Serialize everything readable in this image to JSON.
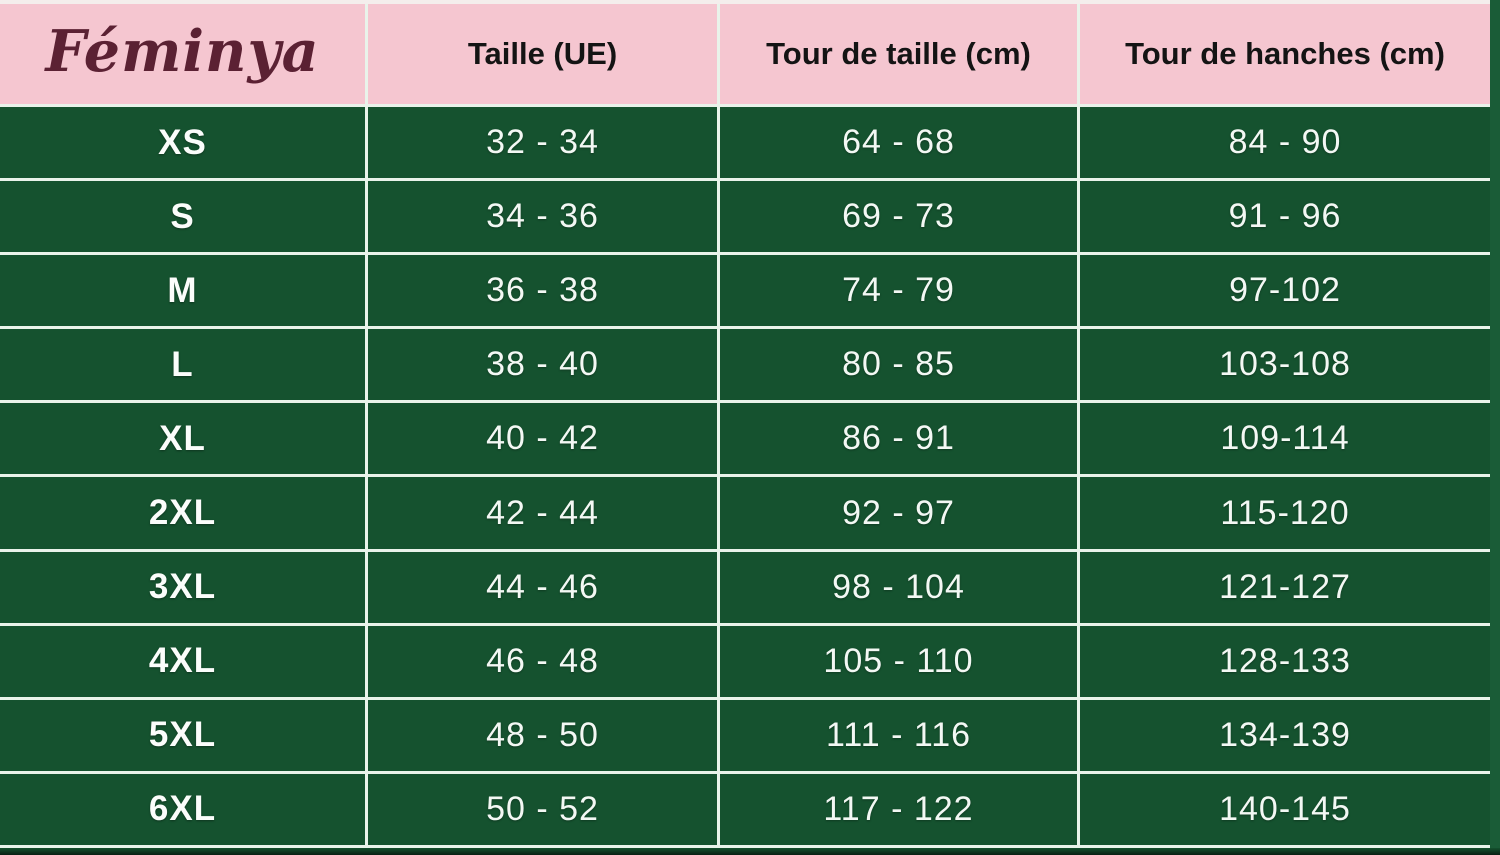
{
  "brand": {
    "name": "Féminya"
  },
  "chart_data": {
    "type": "table",
    "title": "Féminya size chart",
    "columns": [
      "Féminya",
      "Taille (UE)",
      "Tour de taille (cm)",
      "Tour de hanches (cm)"
    ],
    "rows": [
      [
        "XS",
        "32 - 34",
        "64 - 68",
        "84 - 90"
      ],
      [
        "S",
        "34 - 36",
        "69 - 73",
        "91 - 96"
      ],
      [
        "M",
        "36 - 38",
        "74 - 79",
        "97-102"
      ],
      [
        "L",
        "38 - 40",
        "80 - 85",
        "103-108"
      ],
      [
        "XL",
        "40 - 42",
        "86 - 91",
        "109-114"
      ],
      [
        "2XL",
        "42 - 44",
        "92 - 97",
        "115-120"
      ],
      [
        "3XL",
        "44 - 46",
        "98 - 104",
        "121-127"
      ],
      [
        "4XL",
        "46 - 48",
        "105 - 110",
        "128-133"
      ],
      [
        "5XL",
        "48 - 50",
        "111 - 116",
        "134-139"
      ],
      [
        "6XL",
        "50 - 52",
        "117 - 122",
        "140-145"
      ]
    ]
  },
  "colors": {
    "header_pink": "#f5c6d0",
    "cell_green": "#15522f",
    "grid_line": "#e9f3ea",
    "brand_maroon": "#5b2133",
    "header_text": "#141414",
    "cell_text": "#f3f8f4",
    "right_strip_green": "#1a5c37"
  }
}
